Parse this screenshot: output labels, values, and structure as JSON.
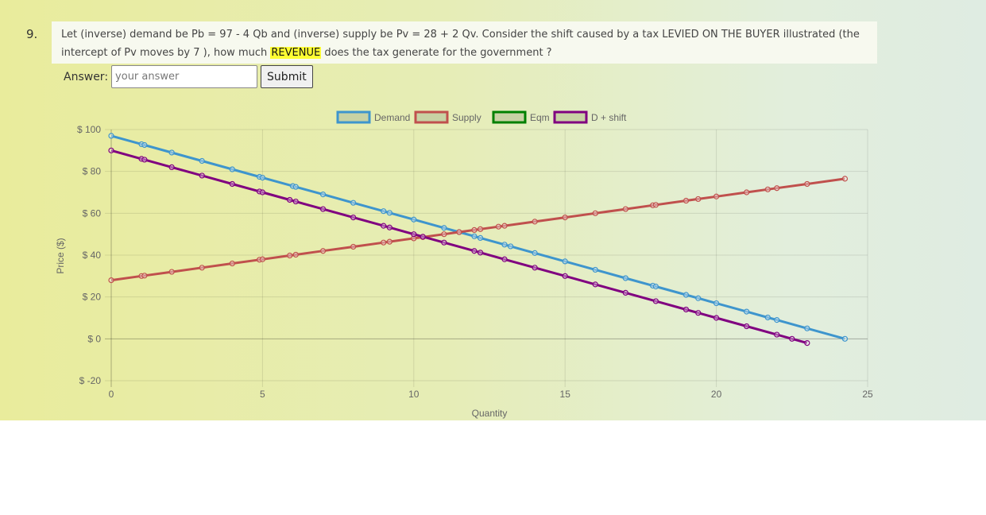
{
  "question": {
    "number": "9.",
    "text_before": "Let (inverse) demand be Pb = 97 - 4 Qb and (inverse) supply be Pv = 28 + 2 Qv. Consider the shift caused by a tax LEVIED ON THE BUYER illustrated (the intercept of Pv moves by 7 ), how much ",
    "highlight": "REVENUE",
    "text_after": " does the tax generate for the government ?",
    "highlight_color": "#ffff33"
  },
  "answer": {
    "label": "Answer:",
    "placeholder": "your answer",
    "value": "",
    "submit_label": "Submit"
  },
  "chart_data": {
    "type": "line",
    "xlabel": "Quantity",
    "ylabel": "Price ($)",
    "xlim": [
      0,
      25
    ],
    "ylim": [
      -20,
      100
    ],
    "xticks": [
      0,
      5,
      10,
      15,
      20,
      25
    ],
    "yticks": [
      100,
      80,
      60,
      40,
      20,
      0,
      -20
    ],
    "ytick_prefix": "$ ",
    "grid": true,
    "legend_position": "top-center",
    "series": [
      {
        "name": "Demand",
        "color": "#3e95cd",
        "legend_fill": "#c8d2a4",
        "points": [
          [
            0,
            97
          ],
          [
            1,
            93
          ],
          [
            1.1,
            92.6
          ],
          [
            2,
            89
          ],
          [
            3,
            85
          ],
          [
            4,
            81
          ],
          [
            4.9,
            77.4
          ],
          [
            5,
            77
          ],
          [
            6,
            73
          ],
          [
            6.1,
            72.6
          ],
          [
            7,
            69
          ],
          [
            8,
            65
          ],
          [
            9,
            61
          ],
          [
            9.2,
            60.2
          ],
          [
            10,
            57
          ],
          [
            11,
            53
          ],
          [
            11.5,
            51
          ],
          [
            12,
            49
          ],
          [
            12.2,
            48.2
          ],
          [
            13,
            45
          ],
          [
            13.2,
            44.2
          ],
          [
            14,
            41
          ],
          [
            15,
            37
          ],
          [
            16,
            33
          ],
          [
            17,
            29
          ],
          [
            17.9,
            25.4
          ],
          [
            18,
            25
          ],
          [
            19,
            21
          ],
          [
            19.4,
            19.4
          ],
          [
            20,
            17
          ],
          [
            21,
            13
          ],
          [
            21.7,
            10.2
          ],
          [
            22,
            9
          ],
          [
            23,
            5
          ],
          [
            24.25,
            0
          ]
        ]
      },
      {
        "name": "Supply",
        "color": "#c0504d",
        "legend_fill": "#c8d2a4",
        "points": [
          [
            0,
            28
          ],
          [
            1,
            30
          ],
          [
            1.1,
            30.2
          ],
          [
            2,
            32
          ],
          [
            3,
            34
          ],
          [
            4,
            36
          ],
          [
            4.9,
            37.8
          ],
          [
            5,
            38
          ],
          [
            5.9,
            39.8
          ],
          [
            6.1,
            40.2
          ],
          [
            7,
            42
          ],
          [
            8,
            44
          ],
          [
            9,
            46
          ],
          [
            9.2,
            46.4
          ],
          [
            10,
            48
          ],
          [
            10.3,
            48.6
          ],
          [
            11,
            50
          ],
          [
            11.5,
            51
          ],
          [
            12,
            52
          ],
          [
            12.2,
            52.4
          ],
          [
            12.8,
            53.6
          ],
          [
            13,
            54
          ],
          [
            14,
            56
          ],
          [
            15,
            58
          ],
          [
            16,
            60
          ],
          [
            17,
            62
          ],
          [
            17.9,
            63.8
          ],
          [
            18,
            64
          ],
          [
            19,
            66
          ],
          [
            19.4,
            66.8
          ],
          [
            20,
            68
          ],
          [
            21,
            70
          ],
          [
            21.7,
            71.4
          ],
          [
            22,
            72
          ],
          [
            23,
            74
          ],
          [
            24.25,
            76.5
          ]
        ]
      },
      {
        "name": "Eqm",
        "color": "#008000",
        "legend_fill": "#c8d2a4",
        "points": []
      },
      {
        "name": "D + shift",
        "color": "#800080",
        "legend_fill": "#c8d2a4",
        "points": [
          [
            0,
            90
          ],
          [
            1,
            86
          ],
          [
            1.1,
            85.6
          ],
          [
            2,
            82
          ],
          [
            3,
            78
          ],
          [
            4,
            74
          ],
          [
            4.9,
            70.4
          ],
          [
            5,
            70
          ],
          [
            5.9,
            66.4
          ],
          [
            6.1,
            65.6
          ],
          [
            7,
            62
          ],
          [
            8,
            58
          ],
          [
            9,
            54
          ],
          [
            9.2,
            53.2
          ],
          [
            10,
            50
          ],
          [
            10.3,
            48.8
          ],
          [
            11,
            46
          ],
          [
            12,
            42
          ],
          [
            12.2,
            41.2
          ],
          [
            13,
            38
          ],
          [
            14,
            34
          ],
          [
            15,
            30
          ],
          [
            16,
            26
          ],
          [
            17,
            22
          ],
          [
            18,
            18
          ],
          [
            19,
            14
          ],
          [
            19.4,
            12.4
          ],
          [
            20,
            10
          ],
          [
            21,
            6
          ],
          [
            22,
            2
          ],
          [
            22.5,
            0
          ],
          [
            23,
            -2
          ]
        ]
      }
    ]
  }
}
